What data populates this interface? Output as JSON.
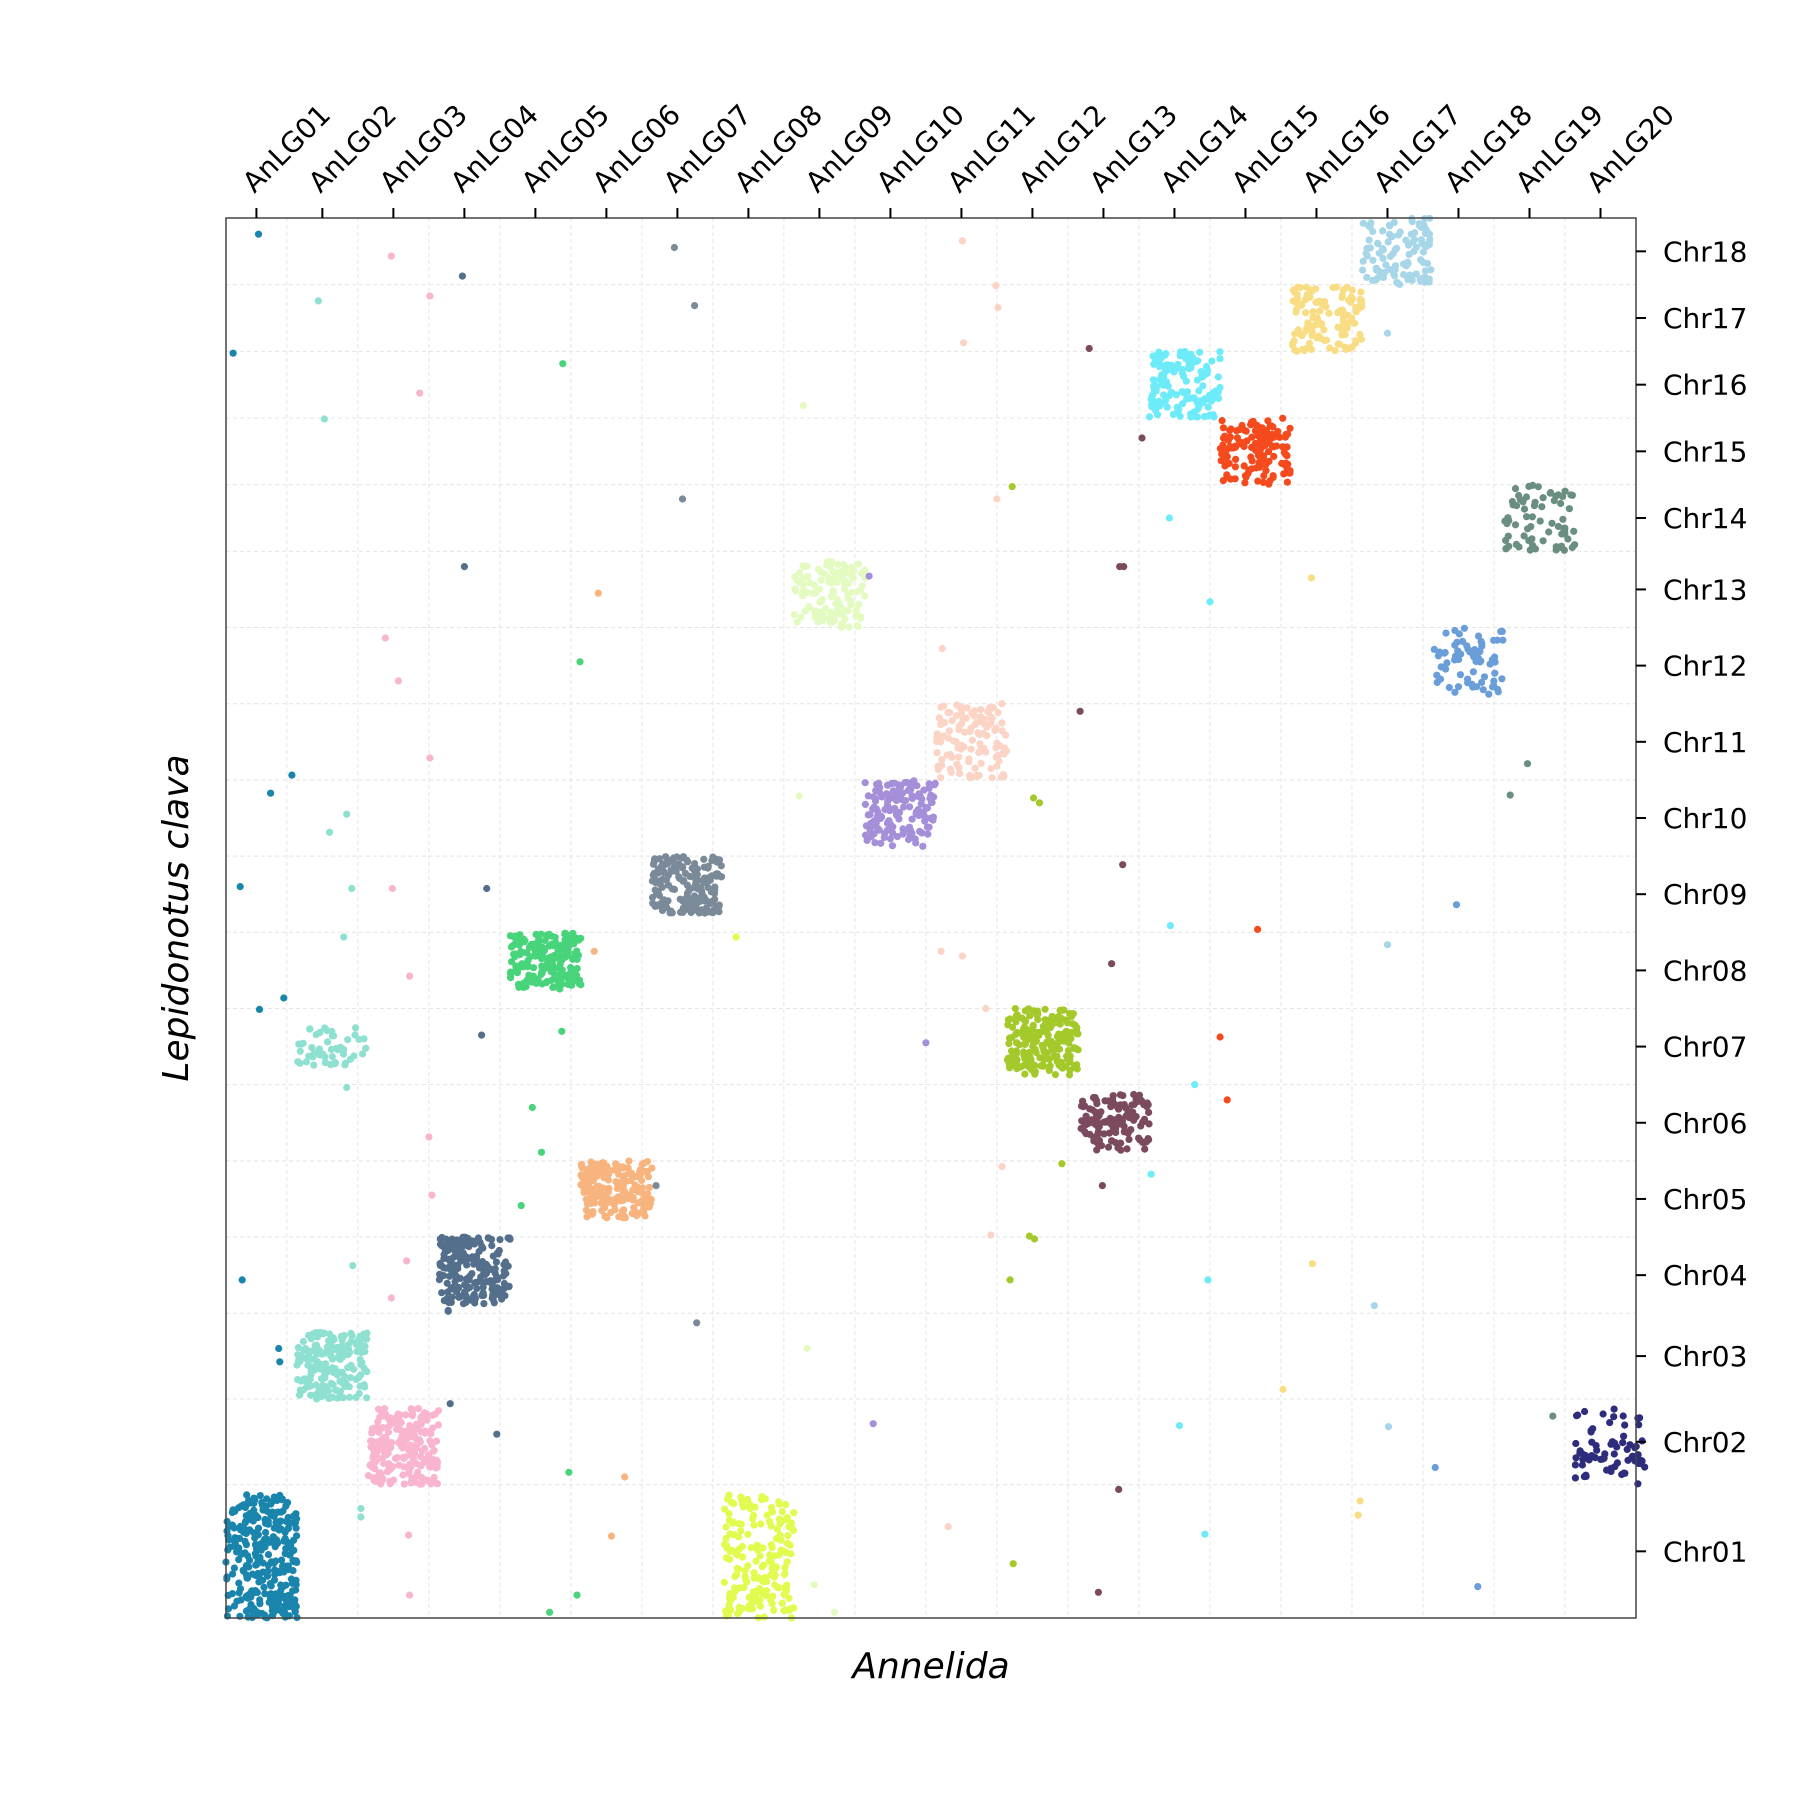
{
  "chart_data": {
    "type": "scatter",
    "title": "",
    "xlabel": "Annelida",
    "ylabel": "Lepidonotus clava",
    "x_categories": [
      "AnLG01",
      "AnLG02",
      "AnLG03",
      "AnLG04",
      "AnLG05",
      "AnLG06",
      "AnLG07",
      "AnLG08",
      "AnLG09",
      "AnLG10",
      "AnLG11",
      "AnLG12",
      "AnLG13",
      "AnLG14",
      "AnLG15",
      "AnLG16",
      "AnLG17",
      "AnLG18",
      "AnLG19",
      "AnLG20"
    ],
    "y_categories": [
      "Chr01",
      "Chr02",
      "Chr03",
      "Chr04",
      "Chr05",
      "Chr06",
      "Chr07",
      "Chr08",
      "Chr09",
      "Chr10",
      "Chr11",
      "Chr12",
      "Chr13",
      "Chr14",
      "Chr15",
      "Chr16",
      "Chr17",
      "Chr18"
    ],
    "x_bounds": [
      0,
      6,
      13,
      20,
      27,
      34,
      41,
      48,
      55,
      62,
      69,
      76,
      83,
      90,
      97,
      104,
      111,
      118,
      125,
      132,
      139
    ],
    "y_bounds": [
      0,
      14,
      23,
      32,
      40,
      48,
      56,
      64,
      72,
      80,
      88,
      96,
      104,
      112,
      119,
      126,
      133,
      140,
      147
    ],
    "grid": true,
    "colors": {
      "AnLG01": "#1a85ac",
      "AnLG02": "#8ee0d0",
      "AnLG03": "#f9b4cf",
      "AnLG04": "#546f8c",
      "AnLG05": "#47d47a",
      "AnLG06": "#f7b47f",
      "AnLG07": "#7a8a98",
      "AnLG08": "#e3fa4f",
      "AnLG09": "#e3fbc1",
      "AnLG10": "#a58fd9",
      "AnLG11": "#fbd4c6",
      "AnLG12": "#a4c92a",
      "AnLG13": "#7b4a5e",
      "AnLG14": "#6debf9",
      "AnLG15": "#f54a1d",
      "AnLG16": "#f9dd84",
      "AnLG17": "#a6d6e8",
      "AnLG18": "#6a9ed8",
      "AnLG19": "#6a8f80",
      "AnLG20": "#2e2c7c"
    },
    "clusters": [
      {
        "lg": "AnLG01",
        "chr": "Chr01",
        "n": 300,
        "x": [
          0.0,
          7.0
        ],
        "y": [
          0.0,
          13.0
        ]
      },
      {
        "lg": "AnLG02",
        "chr": "Chr03",
        "n": 180,
        "x": [
          7.0,
          14.0
        ],
        "y": [
          23.0,
          30.0
        ]
      },
      {
        "lg": "AnLG02",
        "chr": "Chr07",
        "n": 50,
        "x": [
          7.0,
          14.0
        ],
        "y": [
          58.0,
          62.0
        ]
      },
      {
        "lg": "AnLG03",
        "chr": "Chr02",
        "n": 200,
        "x": [
          14.0,
          21.0
        ],
        "y": [
          14.0,
          22.0
        ]
      },
      {
        "lg": "AnLG04",
        "chr": "Chr04",
        "n": 200,
        "x": [
          21.0,
          28.0
        ],
        "y": [
          33.0,
          40.0
        ]
      },
      {
        "lg": "AnLG05",
        "chr": "Chr08",
        "n": 180,
        "x": [
          28.0,
          35.0
        ],
        "y": [
          66.0,
          72.0
        ]
      },
      {
        "lg": "AnLG06",
        "chr": "Chr05",
        "n": 180,
        "x": [
          35.0,
          42.0
        ],
        "y": [
          42.0,
          48.0
        ]
      },
      {
        "lg": "AnLG07",
        "chr": "Chr09",
        "n": 180,
        "x": [
          42.0,
          49.0
        ],
        "y": [
          74.0,
          80.0
        ]
      },
      {
        "lg": "AnLG08",
        "chr": "Chr01",
        "n": 180,
        "x": [
          49.0,
          56.0
        ],
        "y": [
          0.0,
          13.0
        ]
      },
      {
        "lg": "AnLG09",
        "chr": "Chr13",
        "n": 120,
        "x": [
          56.0,
          63.0
        ],
        "y": [
          104.0,
          111.0
        ]
      },
      {
        "lg": "AnLG10",
        "chr": "Chr10",
        "n": 140,
        "x": [
          63.0,
          70.0
        ],
        "y": [
          81.0,
          88.0
        ]
      },
      {
        "lg": "AnLG11",
        "chr": "Chr11",
        "n": 120,
        "x": [
          70.0,
          77.0
        ],
        "y": [
          88.0,
          96.0
        ]
      },
      {
        "lg": "AnLG12",
        "chr": "Chr07",
        "n": 200,
        "x": [
          77.0,
          84.0
        ],
        "y": [
          57.0,
          64.0
        ]
      },
      {
        "lg": "AnLG13",
        "chr": "Chr06",
        "n": 120,
        "x": [
          84.0,
          91.0
        ],
        "y": [
          49.0,
          55.0
        ]
      },
      {
        "lg": "AnLG14",
        "chr": "Chr16",
        "n": 140,
        "x": [
          91.0,
          98.0
        ],
        "y": [
          126.0,
          133.0
        ]
      },
      {
        "lg": "AnLG15",
        "chr": "Chr15",
        "n": 140,
        "x": [
          98.0,
          105.0
        ],
        "y": [
          119.0,
          126.0
        ]
      },
      {
        "lg": "AnLG16",
        "chr": "Chr17",
        "n": 120,
        "x": [
          105.0,
          112.0
        ],
        "y": [
          133.0,
          140.0
        ]
      },
      {
        "lg": "AnLG17",
        "chr": "Chr18",
        "n": 110,
        "x": [
          112.0,
          119.0
        ],
        "y": [
          140.0,
          147.0
        ]
      },
      {
        "lg": "AnLG18",
        "chr": "Chr12",
        "n": 70,
        "x": [
          119.0,
          126.0
        ],
        "y": [
          97.0,
          104.0
        ]
      },
      {
        "lg": "AnLG19",
        "chr": "Chr14",
        "n": 70,
        "x": [
          126.0,
          133.0
        ],
        "y": [
          112.0,
          119.0
        ]
      },
      {
        "lg": "AnLG20",
        "chr": "Chr02",
        "n": 70,
        "x": [
          133.0,
          140.0
        ],
        "y": [
          14.0,
          22.0
        ]
      }
    ],
    "scattered_points": [
      {
        "lg": "AnLG01",
        "x": 3.2,
        "y": 145.3
      },
      {
        "lg": "AnLG01",
        "x": 0.7,
        "y": 132.8
      },
      {
        "lg": "AnLG01",
        "x": 6.5,
        "y": 88.5
      },
      {
        "lg": "AnLG01",
        "x": 4.4,
        "y": 86.6
      },
      {
        "lg": "AnLG01",
        "x": 1.4,
        "y": 76.8
      },
      {
        "lg": "AnLG01",
        "x": 5.7,
        "y": 65.1
      },
      {
        "lg": "AnLG01",
        "x": 3.3,
        "y": 63.9
      },
      {
        "lg": "AnLG01",
        "x": 1.6,
        "y": 35.5
      },
      {
        "lg": "AnLG01",
        "x": 5.2,
        "y": 28.3
      },
      {
        "lg": "AnLG01",
        "x": 5.3,
        "y": 26.9
      },
      {
        "lg": "AnLG02",
        "x": 9.1,
        "y": 138.3
      },
      {
        "lg": "AnLG02",
        "x": 9.7,
        "y": 125.9
      },
      {
        "lg": "AnLG02",
        "x": 10.2,
        "y": 82.5
      },
      {
        "lg": "AnLG02",
        "x": 11.9,
        "y": 84.4
      },
      {
        "lg": "AnLG02",
        "x": 12.4,
        "y": 76.6
      },
      {
        "lg": "AnLG02",
        "x": 11.6,
        "y": 71.5
      },
      {
        "lg": "AnLG02",
        "x": 11.9,
        "y": 55.7
      },
      {
        "lg": "AnLG02",
        "x": 12.5,
        "y": 37.0
      },
      {
        "lg": "AnLG02",
        "x": 13.3,
        "y": 11.5
      },
      {
        "lg": "AnLG02",
        "x": 13.3,
        "y": 10.6
      },
      {
        "lg": "AnLG03",
        "x": 16.3,
        "y": 143.0
      },
      {
        "lg": "AnLG03",
        "x": 20.1,
        "y": 138.8
      },
      {
        "lg": "AnLG03",
        "x": 19.1,
        "y": 128.6
      },
      {
        "lg": "AnLG03",
        "x": 15.7,
        "y": 102.9
      },
      {
        "lg": "AnLG03",
        "x": 17.0,
        "y": 98.4
      },
      {
        "lg": "AnLG03",
        "x": 20.1,
        "y": 90.3
      },
      {
        "lg": "AnLG03",
        "x": 16.4,
        "y": 76.6
      },
      {
        "lg": "AnLG03",
        "x": 18.1,
        "y": 67.4
      },
      {
        "lg": "AnLG03",
        "x": 20.0,
        "y": 50.5
      },
      {
        "lg": "AnLG03",
        "x": 20.3,
        "y": 44.4
      },
      {
        "lg": "AnLG03",
        "x": 17.8,
        "y": 37.5
      },
      {
        "lg": "AnLG03",
        "x": 16.3,
        "y": 33.6
      },
      {
        "lg": "AnLG03",
        "x": 18.0,
        "y": 8.7
      },
      {
        "lg": "AnLG03",
        "x": 18.1,
        "y": 2.4
      },
      {
        "lg": "AnLG04",
        "x": 23.3,
        "y": 140.9
      },
      {
        "lg": "AnLG04",
        "x": 23.5,
        "y": 110.4
      },
      {
        "lg": "AnLG04",
        "x": 25.7,
        "y": 76.6
      },
      {
        "lg": "AnLG04",
        "x": 25.2,
        "y": 61.2
      },
      {
        "lg": "AnLG04",
        "x": 21.9,
        "y": 32.2
      },
      {
        "lg": "AnLG04",
        "x": 21.9,
        "y": 32.3
      },
      {
        "lg": "AnLG04",
        "x": 22.1,
        "y": 22.5
      },
      {
        "lg": "AnLG04",
        "x": 26.7,
        "y": 19.3
      },
      {
        "lg": "AnLG05",
        "x": 33.2,
        "y": 131.7
      },
      {
        "lg": "AnLG05",
        "x": 34.9,
        "y": 100.4
      },
      {
        "lg": "AnLG05",
        "x": 33.1,
        "y": 61.6
      },
      {
        "lg": "AnLG05",
        "x": 30.2,
        "y": 53.6
      },
      {
        "lg": "AnLG05",
        "x": 31.1,
        "y": 48.9
      },
      {
        "lg": "AnLG05",
        "x": 29.1,
        "y": 43.3
      },
      {
        "lg": "AnLG05",
        "x": 33.8,
        "y": 15.3
      },
      {
        "lg": "AnLG05",
        "x": 34.6,
        "y": 2.4
      },
      {
        "lg": "AnLG05",
        "x": 31.9,
        "y": 0.6
      },
      {
        "lg": "AnLG06",
        "x": 36.7,
        "y": 107.6
      },
      {
        "lg": "AnLG06",
        "x": 36.3,
        "y": 70.0
      },
      {
        "lg": "AnLG06",
        "x": 39.3,
        "y": 14.8
      },
      {
        "lg": "AnLG06",
        "x": 38.0,
        "y": 8.6
      },
      {
        "lg": "AnLG07",
        "x": 44.2,
        "y": 143.9
      },
      {
        "lg": "AnLG07",
        "x": 46.2,
        "y": 137.8
      },
      {
        "lg": "AnLG07",
        "x": 45.0,
        "y": 117.5
      },
      {
        "lg": "AnLG07",
        "x": 46.4,
        "y": 31.0
      },
      {
        "lg": "AnLG07",
        "x": 42.4,
        "y": 45.4
      },
      {
        "lg": "AnLG08",
        "x": 50.3,
        "y": 71.5
      },
      {
        "lg": "AnLG09",
        "x": 56.9,
        "y": 127.3
      },
      {
        "lg": "AnLG09",
        "x": 56.5,
        "y": 86.3
      },
      {
        "lg": "AnLG09",
        "x": 57.3,
        "y": 28.3
      },
      {
        "lg": "AnLG09",
        "x": 58.0,
        "y": 3.5
      },
      {
        "lg": "AnLG09",
        "x": 60.0,
        "y": 0.6
      },
      {
        "lg": "AnLG10",
        "x": 63.4,
        "y": 109.4
      },
      {
        "lg": "AnLG10",
        "x": 63.8,
        "y": 20.4
      },
      {
        "lg": "AnLG10",
        "x": 69.0,
        "y": 60.4
      },
      {
        "lg": "AnLG11",
        "x": 72.6,
        "y": 144.6
      },
      {
        "lg": "AnLG11",
        "x": 75.9,
        "y": 139.9
      },
      {
        "lg": "AnLG11",
        "x": 76.1,
        "y": 137.6
      },
      {
        "lg": "AnLG11",
        "x": 72.7,
        "y": 133.9
      },
      {
        "lg": "AnLG11",
        "x": 70.6,
        "y": 101.8
      },
      {
        "lg": "AnLG11",
        "x": 70.5,
        "y": 70.0
      },
      {
        "lg": "AnLG11",
        "x": 72.6,
        "y": 69.5
      },
      {
        "lg": "AnLG11",
        "x": 74.9,
        "y": 64.0
      },
      {
        "lg": "AnLG11",
        "x": 76.0,
        "y": 117.5
      },
      {
        "lg": "AnLG11",
        "x": 76.5,
        "y": 47.4
      },
      {
        "lg": "AnLG11",
        "x": 75.4,
        "y": 40.2
      },
      {
        "lg": "AnLG11",
        "x": 71.2,
        "y": 9.6
      },
      {
        "lg": "AnLG12",
        "x": 77.5,
        "y": 118.8
      },
      {
        "lg": "AnLG12",
        "x": 79.6,
        "y": 86.1
      },
      {
        "lg": "AnLG12",
        "x": 80.2,
        "y": 85.6
      },
      {
        "lg": "AnLG12",
        "x": 82.4,
        "y": 47.7
      },
      {
        "lg": "AnLG12",
        "x": 79.2,
        "y": 40.1
      },
      {
        "lg": "AnLG12",
        "x": 79.7,
        "y": 39.8
      },
      {
        "lg": "AnLG12",
        "x": 77.3,
        "y": 35.5
      },
      {
        "lg": "AnLG12",
        "x": 77.6,
        "y": 5.7
      },
      {
        "lg": "AnLG13",
        "x": 85.1,
        "y": 133.3
      },
      {
        "lg": "AnLG13",
        "x": 90.3,
        "y": 123.9
      },
      {
        "lg": "AnLG13",
        "x": 88.1,
        "y": 110.4
      },
      {
        "lg": "AnLG13",
        "x": 88.5,
        "y": 110.4
      },
      {
        "lg": "AnLG13",
        "x": 84.2,
        "y": 95.2
      },
      {
        "lg": "AnLG13",
        "x": 88.4,
        "y": 79.1
      },
      {
        "lg": "AnLG13",
        "x": 87.3,
        "y": 68.7
      },
      {
        "lg": "AnLG13",
        "x": 86.4,
        "y": 45.4
      },
      {
        "lg": "AnLG13",
        "x": 88.0,
        "y": 13.5
      },
      {
        "lg": "AnLG13",
        "x": 86.0,
        "y": 2.7
      },
      {
        "lg": "AnLG14",
        "x": 93.0,
        "y": 115.5
      },
      {
        "lg": "AnLG14",
        "x": 97.0,
        "y": 106.7
      },
      {
        "lg": "AnLG14",
        "x": 93.1,
        "y": 72.7
      },
      {
        "lg": "AnLG14",
        "x": 95.5,
        "y": 56.0
      },
      {
        "lg": "AnLG14",
        "x": 91.2,
        "y": 46.6
      },
      {
        "lg": "AnLG14",
        "x": 96.8,
        "y": 35.5
      },
      {
        "lg": "AnLG14",
        "x": 94.0,
        "y": 20.2
      },
      {
        "lg": "AnLG14",
        "x": 96.5,
        "y": 8.8
      },
      {
        "lg": "AnLG15",
        "x": 101.7,
        "y": 72.3
      },
      {
        "lg": "AnLG15",
        "x": 98.0,
        "y": 61.0
      },
      {
        "lg": "AnLG15",
        "x": 98.7,
        "y": 54.4
      },
      {
        "lg": "AnLG16",
        "x": 107.0,
        "y": 109.2
      },
      {
        "lg": "AnLG16",
        "x": 107.1,
        "y": 37.2
      },
      {
        "lg": "AnLG16",
        "x": 104.2,
        "y": 24.0
      },
      {
        "lg": "AnLG16",
        "x": 111.8,
        "y": 12.3
      },
      {
        "lg": "AnLG16",
        "x": 111.6,
        "y": 10.8
      },
      {
        "lg": "AnLG17",
        "x": 114.5,
        "y": 134.9
      },
      {
        "lg": "AnLG17",
        "x": 114.5,
        "y": 70.7
      },
      {
        "lg": "AnLG17",
        "x": 113.2,
        "y": 32.8
      },
      {
        "lg": "AnLG17",
        "x": 114.6,
        "y": 20.1
      },
      {
        "lg": "AnLG18",
        "x": 121.3,
        "y": 74.9
      },
      {
        "lg": "AnLG18",
        "x": 119.2,
        "y": 15.8
      },
      {
        "lg": "AnLG18",
        "x": 123.4,
        "y": 3.3
      },
      {
        "lg": "AnLG19",
        "x": 128.3,
        "y": 89.7
      },
      {
        "lg": "AnLG19",
        "x": 126.6,
        "y": 86.4
      },
      {
        "lg": "AnLG19",
        "x": 130.8,
        "y": 21.2
      }
    ]
  }
}
